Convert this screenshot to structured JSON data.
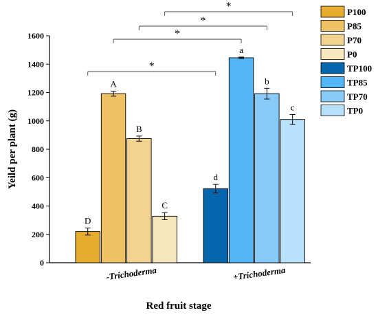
{
  "chart_data": {
    "type": "bar",
    "title": "",
    "xlabel": "Red fruit stage",
    "ylabel": "Yeild per plant (g)",
    "ylim": [
      0,
      1600
    ],
    "yticks": [
      "0",
      "200",
      "400",
      "600",
      "800",
      "1000",
      "1200",
      "1400",
      "1600"
    ],
    "grid": false,
    "legend_position": "top-right",
    "groups": [
      {
        "label": "-Trichoderma",
        "bars": [
          {
            "name": "P100",
            "value": 220,
            "error": 25,
            "letter": "D",
            "color": "#e6ad2e"
          },
          {
            "name": "P85",
            "value": 1192,
            "error": 18,
            "letter": "A",
            "color": "#edc164"
          },
          {
            "name": "P70",
            "value": 875,
            "error": 18,
            "letter": "B",
            "color": "#f2d38f"
          },
          {
            "name": "P0",
            "value": 328,
            "error": 25,
            "letter": "C",
            "color": "#f8e6bc"
          }
        ]
      },
      {
        "label": "+Trichoderma",
        "bars": [
          {
            "name": "TP100",
            "value": 522,
            "error": 30,
            "letter": "d",
            "color": "#0565ad"
          },
          {
            "name": "TP85",
            "value": 1445,
            "error": 5,
            "letter": "a",
            "color": "#55b6f5"
          },
          {
            "name": "TP70",
            "value": 1192,
            "error": 38,
            "letter": "b",
            "color": "#88cbf8"
          },
          {
            "name": "TP0",
            "value": 1010,
            "error": 35,
            "letter": "c",
            "color": "#b8e1fb"
          }
        ]
      }
    ],
    "significance": [
      {
        "label": "*",
        "from": "P100",
        "to": "TP100",
        "level": 1530
      },
      {
        "label": "*",
        "from": "P85",
        "to": "TP85",
        "level": 1555
      },
      {
        "label": "*",
        "from": "P70",
        "to": "TP70",
        "level": 1570
      },
      {
        "label": "*",
        "from": "P0",
        "to": "TP0",
        "level": 1590
      }
    ]
  }
}
